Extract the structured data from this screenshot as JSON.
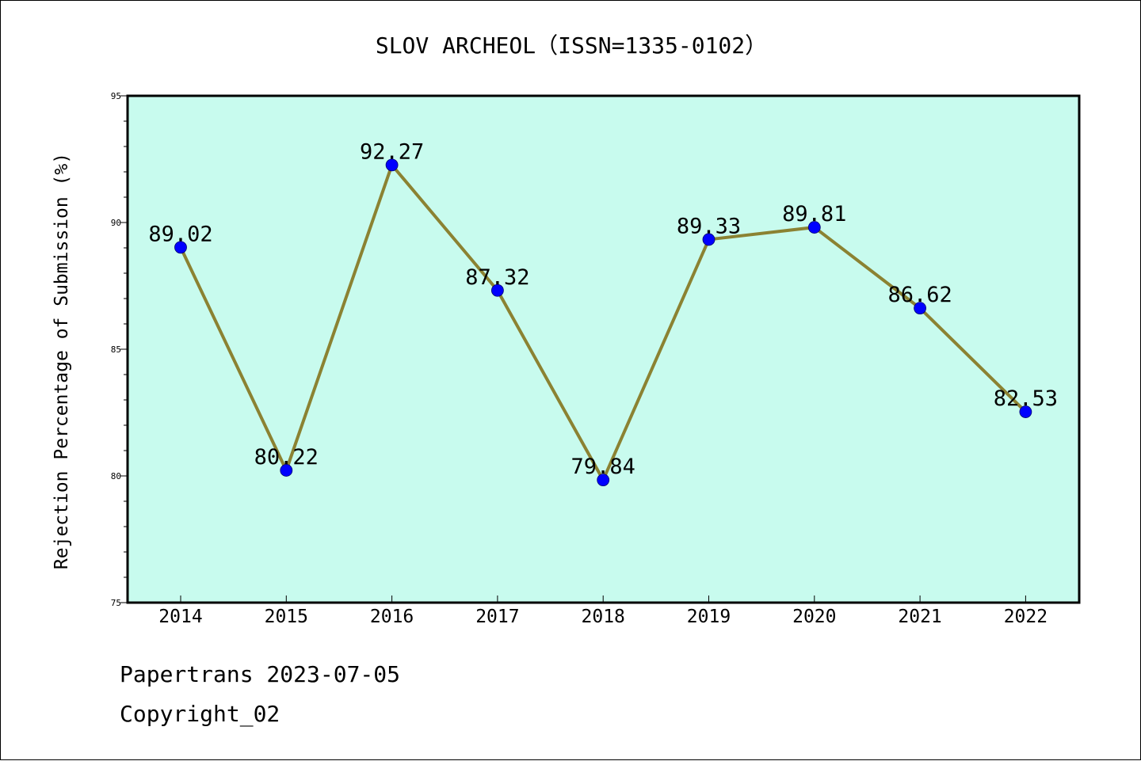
{
  "footer": {
    "line1": "Papertrans 2023-07-05",
    "line2": "Copyright_02"
  },
  "colors": {
    "plot_background": "#c8fbee",
    "line": "#8b8232",
    "marker": "#0000ff"
  },
  "chart_data": {
    "type": "line",
    "title": "SLOV ARCHEOL（ISSN=1335-0102）",
    "xlabel": "",
    "ylabel": "Rejection Percentage of Submission (%)",
    "x": [
      "2014",
      "2015",
      "2016",
      "2017",
      "2018",
      "2019",
      "2020",
      "2021",
      "2022"
    ],
    "series": [
      {
        "values": [
          89.02,
          80.22,
          92.27,
          87.32,
          79.84,
          89.33,
          89.81,
          86.62,
          82.53
        ],
        "labels": [
          "89.02",
          "80.22",
          "92.27",
          "87.32",
          "79.84",
          "89.33",
          "89.81",
          "86.62",
          "82.53"
        ]
      }
    ],
    "ylim": [
      75,
      95
    ],
    "yticks": [
      75,
      80,
      85,
      90,
      95
    ],
    "yticks_labels": [
      "75",
      "80",
      "85",
      "90",
      "95"
    ],
    "minor_tick_step": 1,
    "grid": false,
    "legend": "none"
  }
}
